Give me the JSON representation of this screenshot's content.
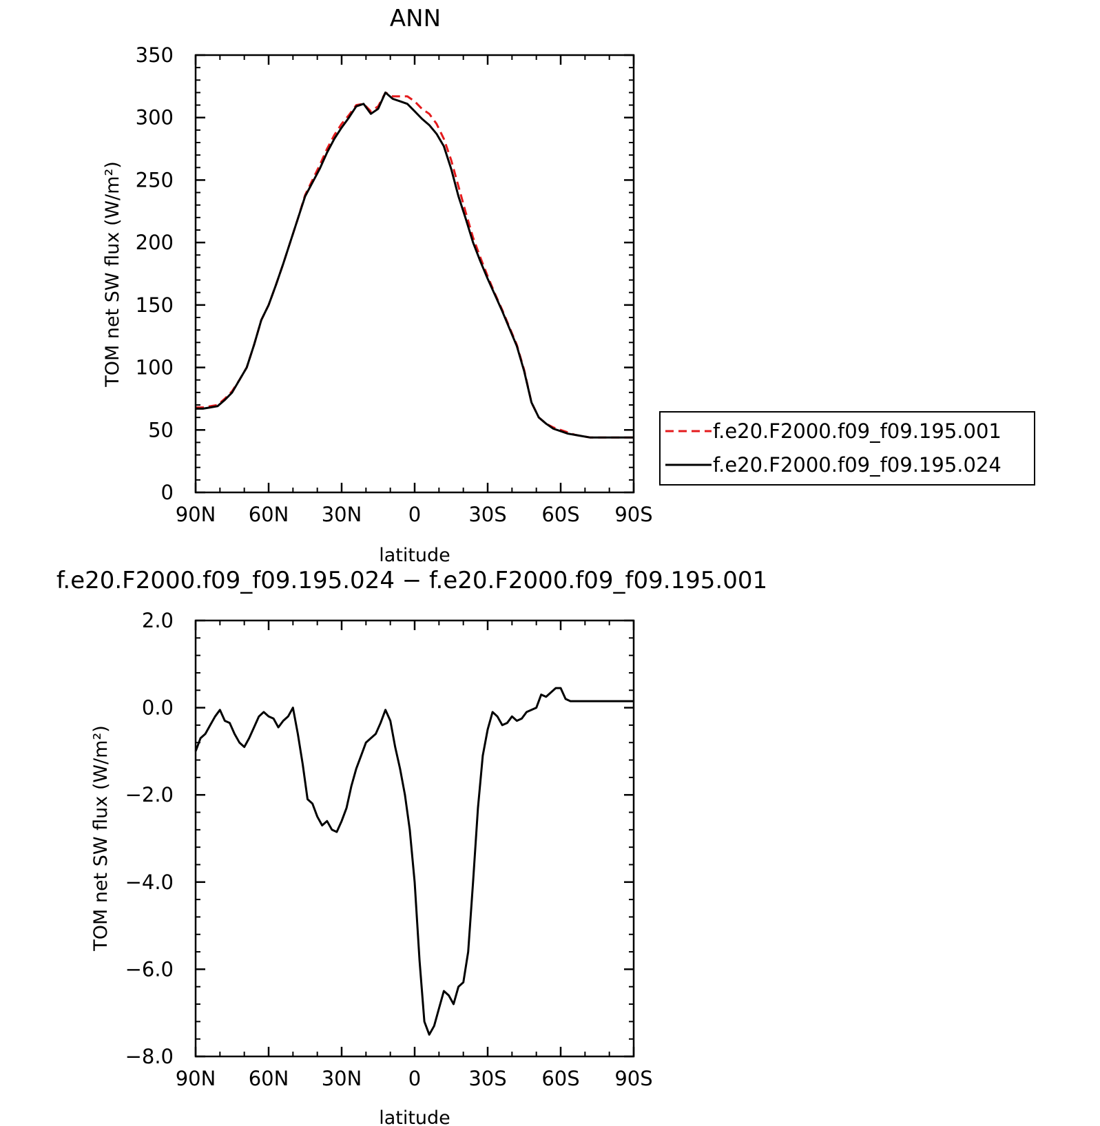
{
  "chart_data": [
    {
      "type": "line",
      "title": "ANN",
      "xlabel": "latitude",
      "ylabel": "TOM net SW flux (W/m²)",
      "xlim": [
        90,
        -90
      ],
      "ylim": [
        0,
        350
      ],
      "xticks": [
        90,
        60,
        30,
        0,
        -30,
        -60,
        -90
      ],
      "xtick_labels": [
        "90N",
        "60N",
        "30N",
        "0",
        "30S",
        "60S",
        "90S"
      ],
      "yticks": [
        0,
        50,
        100,
        150,
        200,
        250,
        300,
        350
      ],
      "ytick_labels": [
        "0",
        "50",
        "100",
        "150",
        "200",
        "250",
        "300",
        "350"
      ],
      "grid": false,
      "legend": "right",
      "x": [
        90,
        87,
        84,
        81,
        78,
        75,
        72,
        69,
        66,
        63,
        60,
        57,
        54,
        51,
        48,
        45,
        42,
        39,
        36,
        33,
        30,
        27,
        24,
        21,
        18,
        15,
        12,
        9,
        6,
        3,
        0,
        -3,
        -6,
        -9,
        -12,
        -15,
        -18,
        -21,
        -24,
        -27,
        -30,
        -33,
        -36,
        -39,
        -42,
        -45,
        -48,
        -51,
        -54,
        -57,
        -60,
        -63,
        -66,
        -69,
        -72,
        -75,
        -78,
        -81,
        -84,
        -87,
        -90
      ],
      "series": [
        {
          "name": "f.e20.F2000.f09_f09.195.001",
          "color": "#e41a1c",
          "dash": "dashed",
          "values": [
            68,
            68,
            69,
            70,
            75,
            81,
            90,
            100,
            118,
            138,
            150,
            166,
            183,
            201,
            219,
            238,
            250,
            262,
            275,
            286,
            295,
            302,
            310,
            311,
            305,
            309,
            320,
            317,
            317,
            317,
            313,
            307,
            303,
            295,
            283,
            266,
            245,
            224,
            204,
            188,
            173,
            159,
            146,
            132,
            118,
            98,
            72,
            60,
            55,
            52,
            50,
            48,
            46,
            45,
            44,
            44,
            44,
            44,
            44,
            44,
            44
          ]
        },
        {
          "name": "f.e20.F2000.f09_f09.195.024",
          "color": "#000000",
          "dash": "solid",
          "values": [
            67,
            67,
            68,
            69,
            74,
            80,
            90,
            100,
            118,
            138,
            150,
            166,
            183,
            201,
            219,
            237,
            248,
            259,
            272,
            283,
            292,
            300,
            309,
            311,
            303,
            307,
            320,
            315,
            313,
            311,
            305,
            299,
            294,
            287,
            277,
            259,
            237,
            219,
            200,
            185,
            171,
            158,
            145,
            131,
            117,
            97,
            72,
            60,
            55,
            51,
            49,
            47,
            46,
            45,
            44,
            44,
            44,
            44,
            44,
            44,
            44
          ]
        }
      ]
    },
    {
      "type": "line",
      "title": "f.e20.F2000.f09_f09.195.024 − f.e20.F2000.f09_f09.195.001",
      "xlabel": "latitude",
      "ylabel": "TOM net SW flux (W/m²)",
      "xlim": [
        90,
        -90
      ],
      "ylim": [
        -8,
        2
      ],
      "xticks": [
        90,
        60,
        30,
        0,
        -30,
        -60,
        -90
      ],
      "xtick_labels": [
        "90N",
        "60N",
        "30N",
        "0",
        "30S",
        "60S",
        "90S"
      ],
      "yticks": [
        2,
        0,
        -2,
        -4,
        -6,
        -8
      ],
      "ytick_labels": [
        "2.0",
        "0.0",
        "−2.0",
        "−4.0",
        "−6.0",
        "−8.0"
      ],
      "grid": false,
      "x": [
        90,
        88,
        86,
        84,
        82,
        80,
        78,
        76,
        74,
        72,
        70,
        68,
        66,
        64,
        62,
        60,
        58,
        56,
        54,
        52,
        50,
        48,
        46,
        44,
        42,
        40,
        38,
        36,
        34,
        32,
        30,
        28,
        26,
        24,
        22,
        20,
        18,
        16,
        14,
        12,
        10,
        8,
        6,
        4,
        2,
        0,
        -2,
        -4,
        -6,
        -8,
        -10,
        -12,
        -14,
        -16,
        -18,
        -20,
        -22,
        -24,
        -26,
        -28,
        -30,
        -32,
        -34,
        -36,
        -38,
        -40,
        -42,
        -44,
        -46,
        -48,
        -50,
        -52,
        -54,
        -56,
        -58,
        -60,
        -62,
        -64,
        -66,
        -68,
        -70,
        -72,
        -74,
        -76,
        -78,
        -80,
        -82,
        -84,
        -86,
        -88,
        -90
      ],
      "series": [
        {
          "name": "",
          "color": "#000000",
          "dash": "solid",
          "values": [
            -1.0,
            -0.7,
            -0.6,
            -0.4,
            -0.2,
            -0.05,
            -0.3,
            -0.35,
            -0.6,
            -0.8,
            -0.9,
            -0.7,
            -0.45,
            -0.2,
            -0.1,
            -0.2,
            -0.25,
            -0.45,
            -0.3,
            -0.2,
            0.0,
            -0.6,
            -1.3,
            -2.1,
            -2.2,
            -2.5,
            -2.7,
            -2.6,
            -2.8,
            -2.85,
            -2.6,
            -2.3,
            -1.8,
            -1.4,
            -1.1,
            -0.8,
            -0.7,
            -0.6,
            -0.35,
            -0.05,
            -0.3,
            -0.9,
            -1.4,
            -2.0,
            -2.8,
            -4.0,
            -5.8,
            -7.2,
            -7.5,
            -7.3,
            -6.9,
            -6.5,
            -6.6,
            -6.8,
            -6.4,
            -6.3,
            -5.6,
            -4.0,
            -2.3,
            -1.1,
            -0.5,
            -0.1,
            -0.2,
            -0.4,
            -0.35,
            -0.2,
            -0.3,
            -0.25,
            -0.1,
            -0.05,
            0.0,
            0.3,
            0.25,
            0.35,
            0.45,
            0.45,
            0.2,
            0.15,
            0.15,
            0.15,
            0.15,
            0.15,
            0.15,
            0.15,
            0.15,
            0.15,
            0.15,
            0.15,
            0.15,
            0.15,
            0.15
          ]
        }
      ]
    }
  ]
}
